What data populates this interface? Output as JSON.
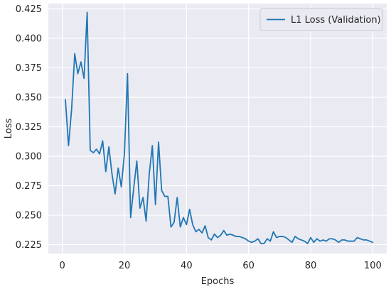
{
  "chart_data": {
    "type": "line",
    "title": "",
    "xlabel": "Epochs",
    "ylabel": "Loss",
    "xlim": [
      -4.5,
      104.5
    ],
    "ylim": [
      0.2175,
      0.4295
    ],
    "xticks": [
      0,
      20,
      40,
      60,
      80,
      100
    ],
    "yticks": [
      0.225,
      0.25,
      0.275,
      0.3,
      0.325,
      0.35,
      0.375,
      0.4,
      0.425
    ],
    "ytick_labels": [
      "0.225",
      "0.250",
      "0.275",
      "0.300",
      "0.325",
      "0.350",
      "0.375",
      "0.400",
      "0.425"
    ],
    "xtick_labels": [
      "0",
      "20",
      "40",
      "60",
      "80",
      "100"
    ],
    "grid": true,
    "background": "#eaeaf2",
    "legend_position": "top-right",
    "series": [
      {
        "name": "L1 Loss (Validation)",
        "color": "#1f77b4",
        "x": [
          1,
          2,
          3,
          4,
          5,
          6,
          7,
          8,
          9,
          10,
          11,
          12,
          13,
          14,
          15,
          16,
          17,
          18,
          19,
          20,
          21,
          22,
          23,
          24,
          25,
          26,
          27,
          28,
          29,
          30,
          31,
          32,
          33,
          34,
          35,
          36,
          37,
          38,
          39,
          40,
          41,
          42,
          43,
          44,
          45,
          46,
          47,
          48,
          49,
          50,
          51,
          52,
          53,
          54,
          55,
          56,
          57,
          58,
          59,
          60,
          61,
          62,
          63,
          64,
          65,
          66,
          67,
          68,
          69,
          70,
          71,
          72,
          73,
          74,
          75,
          76,
          77,
          78,
          79,
          80,
          81,
          82,
          83,
          84,
          85,
          86,
          87,
          88,
          89,
          90,
          91,
          92,
          93,
          94,
          95,
          96,
          97,
          98,
          99,
          100
        ],
        "values": [
          0.348,
          0.309,
          0.34,
          0.387,
          0.37,
          0.38,
          0.366,
          0.422,
          0.305,
          0.303,
          0.306,
          0.302,
          0.313,
          0.287,
          0.308,
          0.285,
          0.268,
          0.29,
          0.274,
          0.302,
          0.37,
          0.248,
          0.273,
          0.296,
          0.256,
          0.265,
          0.245,
          0.285,
          0.309,
          0.259,
          0.312,
          0.271,
          0.266,
          0.266,
          0.24,
          0.244,
          0.265,
          0.24,
          0.248,
          0.242,
          0.255,
          0.242,
          0.236,
          0.238,
          0.235,
          0.241,
          0.231,
          0.229,
          0.234,
          0.231,
          0.233,
          0.237,
          0.233,
          0.234,
          0.233,
          0.232,
          0.232,
          0.231,
          0.23,
          0.228,
          0.227,
          0.228,
          0.23,
          0.226,
          0.226,
          0.23,
          0.228,
          0.236,
          0.231,
          0.232,
          0.232,
          0.231,
          0.229,
          0.227,
          0.232,
          0.23,
          0.229,
          0.228,
          0.226,
          0.231,
          0.227,
          0.23,
          0.228,
          0.229,
          0.228,
          0.23,
          0.23,
          0.229,
          0.227,
          0.229,
          0.229,
          0.228,
          0.228,
          0.228,
          0.231,
          0.23,
          0.229,
          0.229,
          0.228,
          0.227
        ]
      }
    ]
  }
}
